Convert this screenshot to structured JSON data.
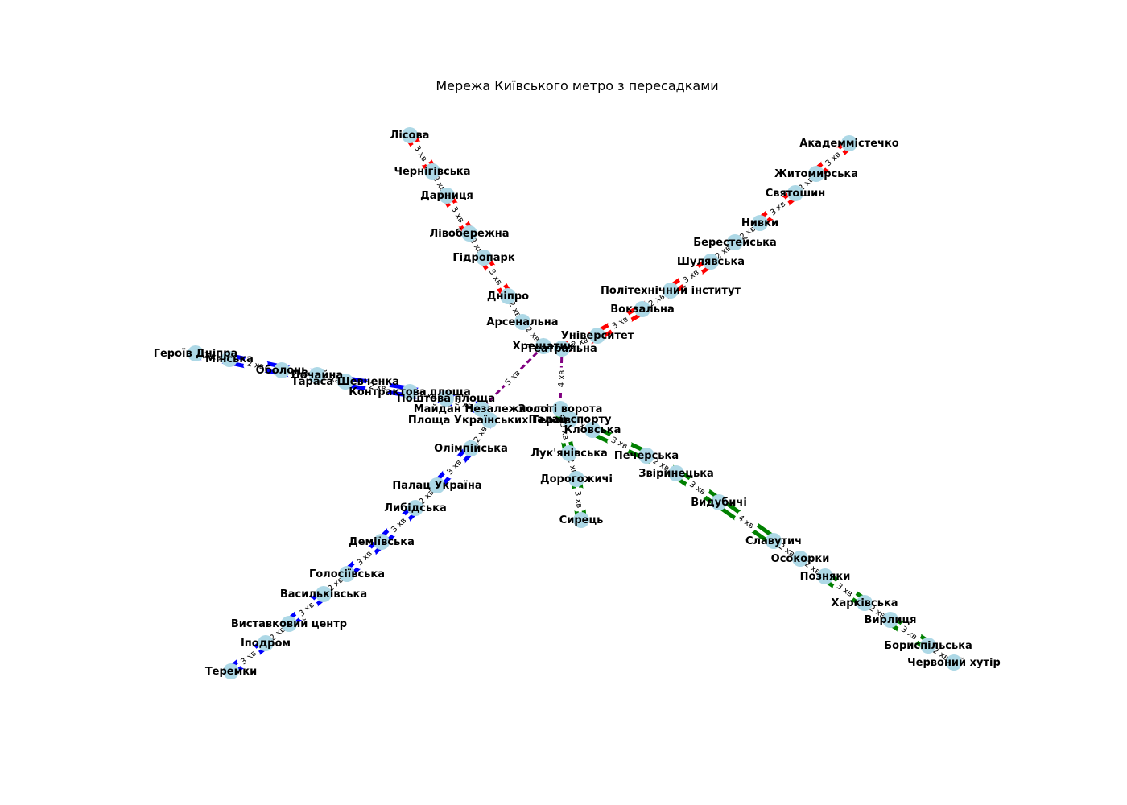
{
  "title": "Мережа Київського метро з пересадками",
  "time_unit": "хв",
  "colors": {
    "red": "#ff0000",
    "blue": "#0000ff",
    "green": "#008000",
    "transfer": "#800080",
    "station": "#add8e6"
  },
  "lines": [
    {
      "name": "red-branch-left",
      "color": "#ff0000",
      "stations": [
        "Лісова",
        "Чернігівська",
        "Дарниця",
        "Лівобережна",
        "Гідропарк",
        "Дніпро",
        "Арсенальна",
        "Хрещатик"
      ],
      "times": [
        3,
        2,
        3,
        2,
        3,
        2,
        2
      ]
    },
    {
      "name": "red-branch-right",
      "color": "#ff0000",
      "stations": [
        "Театральна",
        "Університет",
        "Вокзальна",
        "Політехнічний інститут",
        "Шулявська",
        "Берестейська",
        "Нивки",
        "Святошин",
        "Житомирська",
        "Академмістечко"
      ],
      "times": [
        2,
        3,
        2,
        3,
        2,
        2,
        3,
        2,
        3
      ]
    },
    {
      "name": "blue-branch-top",
      "color": "#0000ff",
      "stations": [
        "Героїв Дніпра",
        "Мінська",
        "Оболонь",
        "Почайна",
        "Тараса Шевченка",
        "Контрактова площа",
        "Поштова площа",
        "Майдан Незалежності"
      ],
      "times": [
        2,
        2,
        2,
        2,
        2,
        2,
        2
      ]
    },
    {
      "name": "blue-branch-bottom",
      "color": "#0000ff",
      "stations": [
        "Площа Українських Героїв",
        "Олімпійська",
        "Палац Україна",
        "Либідська",
        "Деміївська",
        "Голосіївська",
        "Васильківська",
        "Виставковий центр",
        "Іподром",
        "Теремки"
      ],
      "times": [
        2,
        3,
        2,
        3,
        3,
        2,
        3,
        2,
        3
      ]
    },
    {
      "name": "green-branch-short",
      "color": "#008000",
      "stations": [
        "Золоті ворота",
        "Лук'янівська",
        "Дорогожичі",
        "Сирець"
      ],
      "times": [
        3,
        2,
        3
      ]
    },
    {
      "name": "green-branch-long",
      "color": "#008000",
      "stations": [
        "Палац спорту",
        "Кловська",
        "Печерська",
        "Звіринецька",
        "Видубичі",
        "Славутич",
        "Осокорки",
        "Позняки",
        "Харківська",
        "Вирлиця",
        "Бориспільська",
        "Червоний хутір"
      ],
      "times": [
        2,
        3,
        2,
        3,
        4,
        2,
        2,
        3,
        2,
        3,
        2
      ]
    }
  ],
  "transfers": [
    {
      "from": "Хрещатик",
      "to": "Майдан Незалежності",
      "time": "5 хв"
    },
    {
      "from": "Театральна",
      "to": "Золоті ворота",
      "time": "4 хв"
    }
  ]
}
